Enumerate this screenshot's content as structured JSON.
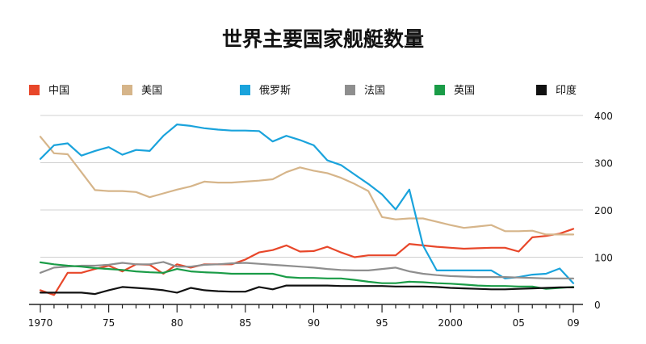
{
  "chart_data": {
    "type": "line",
    "title": "世界主要国家舰艇数量",
    "xlabel": "",
    "ylabel": "",
    "x_tick_labels": [
      "1970",
      "75",
      "80",
      "85",
      "90",
      "95",
      "2000",
      "05",
      "09"
    ],
    "x_ticks": [
      1970,
      1975,
      1980,
      1985,
      1990,
      1995,
      2000,
      2005,
      2009
    ],
    "xlim": [
      1970,
      2009
    ],
    "y_ticks": [
      0,
      100,
      200,
      300,
      400
    ],
    "ylim": [
      0,
      400
    ],
    "grid": true,
    "legend_position": "top",
    "x": [
      1970,
      1971,
      1972,
      1973,
      1974,
      1975,
      1976,
      1977,
      1978,
      1979,
      1980,
      1981,
      1982,
      1983,
      1984,
      1985,
      1986,
      1987,
      1988,
      1989,
      1990,
      1991,
      1992,
      1993,
      1994,
      1995,
      1996,
      1997,
      1998,
      1999,
      2000,
      2001,
      2002,
      2003,
      2004,
      2005,
      2006,
      2007,
      2008,
      2009
    ],
    "series": [
      {
        "name": "中国",
        "color": "#e8472a",
        "values": [
          30,
          20,
          67,
          67,
          75,
          82,
          70,
          85,
          84,
          65,
          85,
          78,
          85,
          85,
          85,
          95,
          110,
          115,
          125,
          112,
          113,
          122,
          110,
          100,
          104,
          104,
          104,
          128,
          125,
          122,
          120,
          118,
          119,
          120,
          120,
          112,
          142,
          145,
          150,
          160
        ]
      },
      {
        "name": "美国",
        "color": "#d6b58a",
        "values": [
          355,
          320,
          318,
          280,
          242,
          240,
          240,
          238,
          227,
          235,
          243,
          250,
          260,
          258,
          258,
          260,
          262,
          265,
          280,
          290,
          283,
          278,
          268,
          255,
          240,
          185,
          180,
          182,
          182,
          175,
          168,
          162,
          165,
          168,
          155,
          155,
          156,
          148,
          148,
          148
        ]
      },
      {
        "name": "俄罗斯",
        "color": "#1aa3dc",
        "values": [
          308,
          337,
          341,
          315,
          325,
          333,
          317,
          327,
          325,
          357,
          381,
          378,
          373,
          370,
          368,
          368,
          367,
          345,
          357,
          348,
          337,
          305,
          295,
          275,
          255,
          233,
          201,
          243,
          125,
          72,
          72,
          72,
          72,
          72,
          55,
          58,
          63,
          65,
          76,
          45
        ]
      },
      {
        "name": "法国",
        "color": "#8e8e8e",
        "values": [
          67,
          78,
          80,
          82,
          82,
          84,
          88,
          85,
          85,
          90,
          80,
          80,
          84,
          85,
          87,
          88,
          86,
          84,
          82,
          80,
          78,
          75,
          73,
          72,
          72,
          75,
          78,
          70,
          65,
          62,
          60,
          59,
          58,
          58,
          58,
          57,
          56,
          55,
          55,
          55
        ]
      },
      {
        "name": "英国",
        "color": "#1a9c47",
        "values": [
          89,
          85,
          82,
          80,
          77,
          75,
          73,
          70,
          68,
          67,
          75,
          70,
          68,
          67,
          65,
          65,
          65,
          65,
          58,
          56,
          56,
          55,
          55,
          52,
          48,
          45,
          45,
          48,
          47,
          45,
          44,
          42,
          40,
          39,
          39,
          38,
          38,
          33,
          35,
          37
        ]
      },
      {
        "name": "印度",
        "color": "#111111",
        "values": [
          25,
          25,
          25,
          25,
          22,
          30,
          37,
          35,
          33,
          30,
          25,
          35,
          30,
          28,
          27,
          27,
          37,
          32,
          40,
          40,
          40,
          40,
          39,
          39,
          39,
          39,
          38,
          38,
          38,
          37,
          35,
          34,
          33,
          32,
          32,
          33,
          34,
          35,
          36,
          36
        ]
      }
    ]
  }
}
